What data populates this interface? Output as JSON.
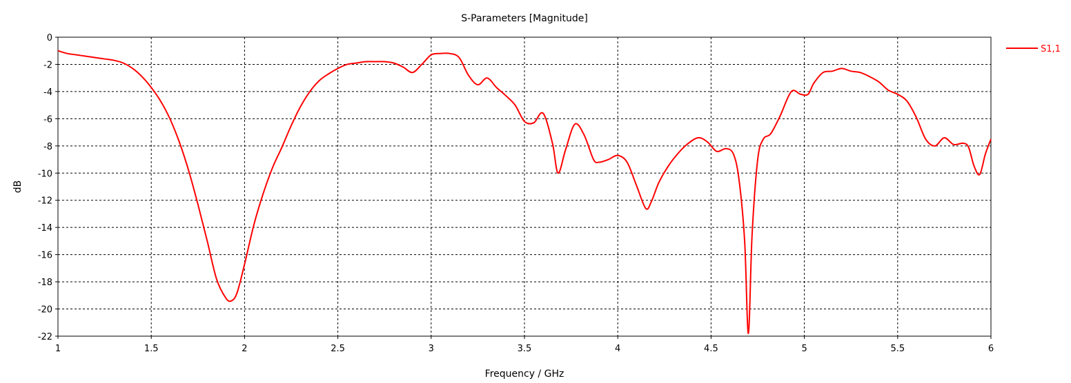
{
  "chart_data": {
    "type": "line",
    "title": "S-Parameters [Magnitude]",
    "xlabel": "Frequency / GHz",
    "ylabel": "dB",
    "xlim": [
      1,
      6
    ],
    "ylim": [
      -22,
      0
    ],
    "xticks": [
      "1",
      "1.5",
      "2",
      "2.5",
      "3",
      "3.5",
      "4",
      "4.5",
      "5",
      "5.5",
      "6"
    ],
    "yticks": [
      "0",
      "-2",
      "-4",
      "-6",
      "-8",
      "-10",
      "-12",
      "-14",
      "-16",
      "-18",
      "-20",
      "-22"
    ],
    "grid": true,
    "legend_position": "top-right",
    "colors": {
      "series": "#ff0000",
      "grid": "#000000",
      "axis": "#000000"
    },
    "series": [
      {
        "name": "S1,1",
        "x": [
          1.0,
          1.05,
          1.1,
          1.15,
          1.2,
          1.25,
          1.3,
          1.35,
          1.4,
          1.45,
          1.5,
          1.55,
          1.6,
          1.65,
          1.7,
          1.75,
          1.8,
          1.85,
          1.9,
          1.93,
          1.96,
          2.0,
          2.05,
          2.1,
          2.15,
          2.2,
          2.25,
          2.3,
          2.35,
          2.4,
          2.45,
          2.5,
          2.55,
          2.6,
          2.65,
          2.7,
          2.75,
          2.8,
          2.85,
          2.9,
          2.95,
          3.0,
          3.05,
          3.1,
          3.15,
          3.2,
          3.25,
          3.3,
          3.35,
          3.4,
          3.45,
          3.5,
          3.55,
          3.6,
          3.65,
          3.68,
          3.72,
          3.77,
          3.82,
          3.87,
          3.9,
          3.95,
          4.0,
          4.05,
          4.1,
          4.15,
          4.18,
          4.22,
          4.27,
          4.32,
          4.37,
          4.43,
          4.48,
          4.53,
          4.58,
          4.62,
          4.65,
          4.68,
          4.7,
          4.72,
          4.75,
          4.78,
          4.82,
          4.87,
          4.93,
          4.98,
          5.02,
          5.05,
          5.1,
          5.15,
          5.2,
          5.25,
          5.3,
          5.35,
          5.4,
          5.45,
          5.5,
          5.55,
          5.6,
          5.65,
          5.7,
          5.75,
          5.8,
          5.85,
          5.88,
          5.91,
          5.94,
          5.97,
          6.0
        ],
        "values": [
          -1.0,
          -1.2,
          -1.3,
          -1.4,
          -1.5,
          -1.6,
          -1.7,
          -1.9,
          -2.3,
          -2.9,
          -3.7,
          -4.7,
          -6.0,
          -7.7,
          -9.8,
          -12.3,
          -15.0,
          -17.8,
          -19.2,
          -19.4,
          -18.8,
          -16.7,
          -13.8,
          -11.5,
          -9.6,
          -8.1,
          -6.5,
          -5.1,
          -4.0,
          -3.2,
          -2.7,
          -2.3,
          -2.0,
          -1.9,
          -1.8,
          -1.8,
          -1.8,
          -1.9,
          -2.2,
          -2.6,
          -2.0,
          -1.3,
          -1.2,
          -1.2,
          -1.5,
          -2.8,
          -3.5,
          -3.0,
          -3.7,
          -4.3,
          -5.0,
          -6.2,
          -6.3,
          -5.6,
          -7.8,
          -10.0,
          -8.3,
          -6.4,
          -7.2,
          -9.0,
          -9.2,
          -9.0,
          -8.7,
          -9.2,
          -10.9,
          -12.6,
          -12.1,
          -10.7,
          -9.5,
          -8.6,
          -7.9,
          -7.4,
          -7.7,
          -8.4,
          -8.2,
          -8.6,
          -10.5,
          -15.0,
          -21.8,
          -14.5,
          -9.0,
          -7.5,
          -7.1,
          -5.8,
          -4.0,
          -4.2,
          -4.2,
          -3.4,
          -2.6,
          -2.5,
          -2.3,
          -2.5,
          -2.6,
          -2.9,
          -3.3,
          -3.9,
          -4.2,
          -4.7,
          -5.9,
          -7.5,
          -8.0,
          -7.4,
          -7.9,
          -7.8,
          -8.1,
          -9.5,
          -10.1,
          -8.6,
          -7.5
        ]
      }
    ]
  }
}
